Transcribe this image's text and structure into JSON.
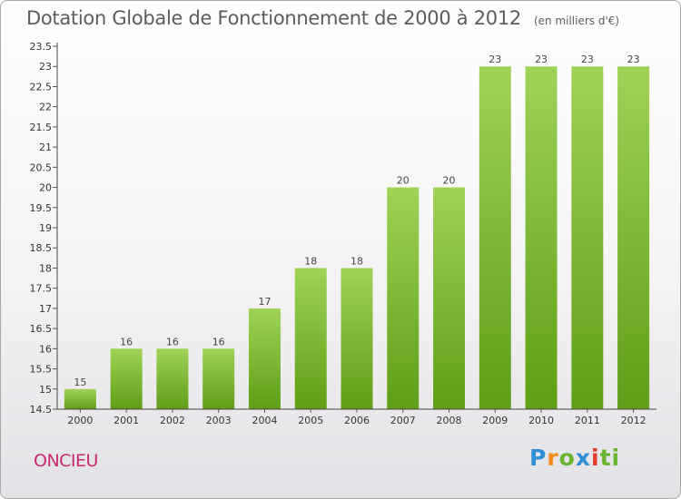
{
  "header": {
    "title": "Dotation Globale de Fonctionnement de 2000 à 2012",
    "unit": "(en milliers d'€)"
  },
  "footer": {
    "commune": "ONCIEU",
    "brand_letters": [
      "P",
      "r",
      "o",
      "x",
      "i",
      "ti"
    ]
  },
  "colors": {
    "bar_top": "#9fd356",
    "bar_bottom": "#5f9e16",
    "commune": "#c8286e"
  },
  "chart_data": {
    "type": "bar",
    "title": "Dotation Globale de Fonctionnement de 2000 à 2012",
    "xlabel": "",
    "ylabel": "",
    "categories": [
      "2000",
      "2001",
      "2002",
      "2003",
      "2004",
      "2005",
      "2006",
      "2007",
      "2008",
      "2009",
      "2010",
      "2011",
      "2012"
    ],
    "values": [
      15,
      16,
      16,
      16,
      17,
      18,
      18,
      20,
      20,
      23,
      23,
      23,
      23
    ],
    "ylim": [
      14.5,
      23.5
    ],
    "yticks": [
      "14.5",
      "15",
      "15.5",
      "16",
      "16.5",
      "17",
      "17.5",
      "18",
      "18.5",
      "19",
      "19.5",
      "20",
      "20.5",
      "21",
      "21.5",
      "22",
      "22.5",
      "23",
      "23.5"
    ],
    "grid": false,
    "legend": "none"
  }
}
